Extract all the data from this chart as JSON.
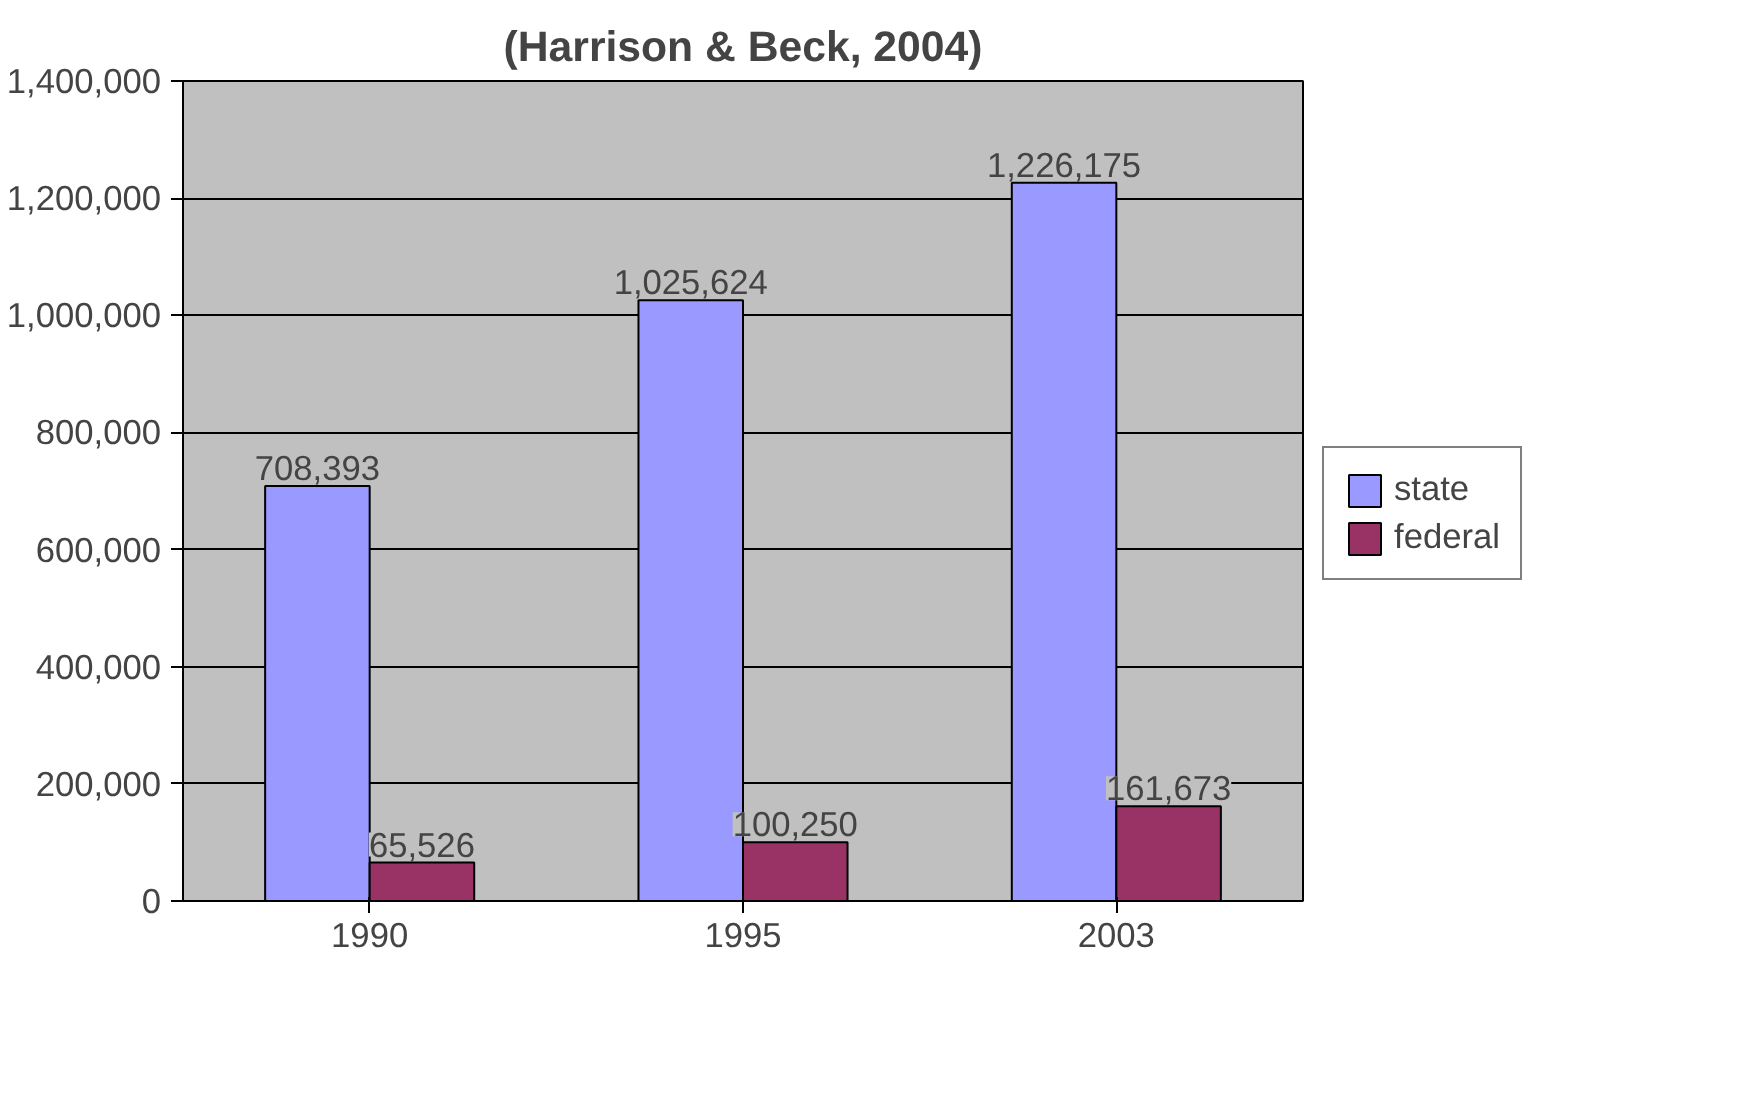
{
  "chart_data": {
    "type": "bar",
    "title": "(Harrison & Beck, 2004)",
    "categories": [
      "1990",
      "1995",
      "2003"
    ],
    "series": [
      {
        "name": "state",
        "color": "#9999ff",
        "values": [
          708393,
          1025624,
          1226175
        ],
        "value_labels": [
          "708,393",
          "1,025,624",
          "1,226,175"
        ]
      },
      {
        "name": "federal",
        "color": "#993366",
        "values": [
          65526,
          100250,
          161673
        ],
        "value_labels": [
          "65,526",
          "100,250",
          "161,673"
        ]
      }
    ],
    "ylim": [
      0,
      1400000
    ],
    "yticks": [
      {
        "value": 0,
        "label": "0"
      },
      {
        "value": 200000,
        "label": "200,000"
      },
      {
        "value": 400000,
        "label": "400,000"
      },
      {
        "value": 600000,
        "label": "600,000"
      },
      {
        "value": 800000,
        "label": "800,000"
      },
      {
        "value": 1000000,
        "label": "1,000,000"
      },
      {
        "value": 1200000,
        "label": "1,200,000"
      },
      {
        "value": 1400000,
        "label": "1,400,000"
      }
    ],
    "grid": "y",
    "legend": "right"
  }
}
